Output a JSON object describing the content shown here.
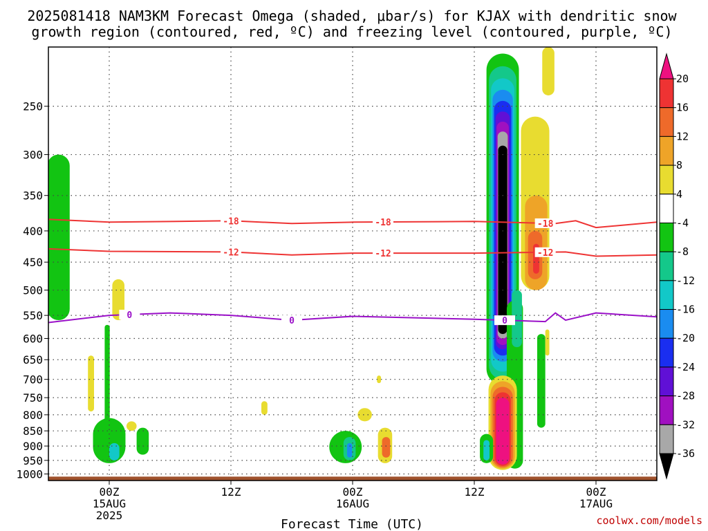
{
  "title": {
    "line1": "2025081418 NAM3KM Forecast Omega (shaded, μbar/s) for KJAX with dendritic snow",
    "line2": "growth region (contoured, red, ºC) and freezing level (contoured, purple, ºC)"
  },
  "credit": "coolwx.com/models",
  "chart_data": {
    "type": "heatmap",
    "title": "2025081418 NAM3KM Forecast Omega (shaded, μbar/s) for KJAX with dendritic snow growth region (contoured, red, ºC) and freezing level (contoured, purple, ºC)",
    "xlabel": "Forecast Time (UTC)",
    "ylabel": "",
    "x_axis": {
      "type": "time",
      "range": [
        "2025-08-14 18Z",
        "2025-08-17 06Z"
      ],
      "ticks": [
        {
          "time": "2025-08-15 00Z",
          "label": [
            "00Z",
            "15AUG",
            "2025"
          ]
        },
        {
          "time": "2025-08-15 12Z",
          "label": [
            "12Z"
          ]
        },
        {
          "time": "2025-08-16 00Z",
          "label": [
            "00Z",
            "16AUG"
          ]
        },
        {
          "time": "2025-08-16 12Z",
          "label": [
            "12Z"
          ]
        },
        {
          "time": "2025-08-17 00Z",
          "label": [
            "00Z",
            "17AUG"
          ]
        }
      ]
    },
    "y_axis": {
      "units": "hPa",
      "scale": "log-pressure",
      "range": [
        1025,
        200
      ],
      "ticks": [
        250,
        300,
        350,
        400,
        450,
        500,
        550,
        600,
        650,
        700,
        750,
        800,
        850,
        900,
        950,
        1000
      ],
      "grid": "dotted"
    },
    "colorbar": {
      "units": "μbar/s",
      "tick_labels": [
        20,
        16,
        12,
        8,
        4,
        -4,
        -8,
        -12,
        -16,
        -20,
        -24,
        -28,
        -32,
        -36
      ],
      "bins": [
        {
          "range": [
            20,
            null
          ],
          "color": "#ee1180"
        },
        {
          "range": [
            16,
            20
          ],
          "color": "#ee3333"
        },
        {
          "range": [
            12,
            16
          ],
          "color": "#ee6a2a"
        },
        {
          "range": [
            8,
            12
          ],
          "color": "#eea428"
        },
        {
          "range": [
            4,
            8
          ],
          "color": "#e8dc30"
        },
        {
          "range": [
            -4,
            4
          ],
          "color": "#ffffff"
        },
        {
          "range": [
            -8,
            -4
          ],
          "color": "#12c412"
        },
        {
          "range": [
            -12,
            -8
          ],
          "color": "#14c88a"
        },
        {
          "range": [
            -16,
            -12
          ],
          "color": "#12c8c8"
        },
        {
          "range": [
            -20,
            -16
          ],
          "color": "#1a8cf0"
        },
        {
          "range": [
            -24,
            -20
          ],
          "color": "#1a2ef0"
        },
        {
          "range": [
            -28,
            -24
          ],
          "color": "#6010d6"
        },
        {
          "range": [
            -32,
            -28
          ],
          "color": "#a010c0"
        },
        {
          "range": [
            -36,
            -32
          ],
          "color": "#a8a8a8"
        },
        {
          "range": [
            null,
            -36
          ],
          "color": "#000000"
        }
      ]
    },
    "contours": [
      {
        "value": -18,
        "label": "-18",
        "color": "#ee3333",
        "points": [
          [
            "2025-08-14 18Z",
            383
          ],
          [
            "2025-08-15 00Z",
            387
          ],
          [
            "2025-08-15 12Z",
            385
          ],
          [
            "2025-08-15 18Z",
            389
          ],
          [
            "2025-08-16 00Z",
            387
          ],
          [
            "2025-08-16 12Z",
            386
          ],
          [
            "2025-08-16 20Z",
            389
          ],
          [
            "2025-08-16 22Z",
            385
          ],
          [
            "2025-08-17 00Z",
            395
          ],
          [
            "2025-08-17 06Z",
            387
          ]
        ],
        "labels_at": [
          "2025-08-15 12Z",
          "2025-08-16 03Z",
          "2025-08-16 19Z"
        ]
      },
      {
        "value": -12,
        "label": "-12",
        "color": "#ee3333",
        "points": [
          [
            "2025-08-14 18Z",
            428
          ],
          [
            "2025-08-15 00Z",
            432
          ],
          [
            "2025-08-15 12Z",
            433
          ],
          [
            "2025-08-15 18Z",
            438
          ],
          [
            "2025-08-16 00Z",
            435
          ],
          [
            "2025-08-16 12Z",
            435
          ],
          [
            "2025-08-16 21Z",
            433
          ],
          [
            "2025-08-17 00Z",
            440
          ],
          [
            "2025-08-17 06Z",
            438
          ]
        ],
        "labels_at": [
          "2025-08-15 12Z",
          "2025-08-16 03Z",
          "2025-08-16 19Z"
        ]
      },
      {
        "value": 0,
        "label": "0",
        "color": "#9a10c8",
        "points": [
          [
            "2025-08-14 18Z",
            565
          ],
          [
            "2025-08-15 00Z",
            550
          ],
          [
            "2025-08-15 06Z",
            545
          ],
          [
            "2025-08-15 12Z",
            550
          ],
          [
            "2025-08-15 18Z",
            560
          ],
          [
            "2025-08-16 00Z",
            552
          ],
          [
            "2025-08-16 12Z",
            558
          ],
          [
            "2025-08-16 19Z",
            563
          ],
          [
            "2025-08-16 20Z",
            545
          ],
          [
            "2025-08-16 21Z",
            560
          ],
          [
            "2025-08-17 00Z",
            545
          ],
          [
            "2025-08-17 06Z",
            553
          ]
        ],
        "labels_at": [
          "2025-08-15 02Z",
          "2025-08-15 18Z",
          "2025-08-16 15Z"
        ]
      }
    ],
    "surface_band": {
      "color": "#a0522d",
      "top_hPa": 1010
    },
    "legend": "colorbar right"
  }
}
